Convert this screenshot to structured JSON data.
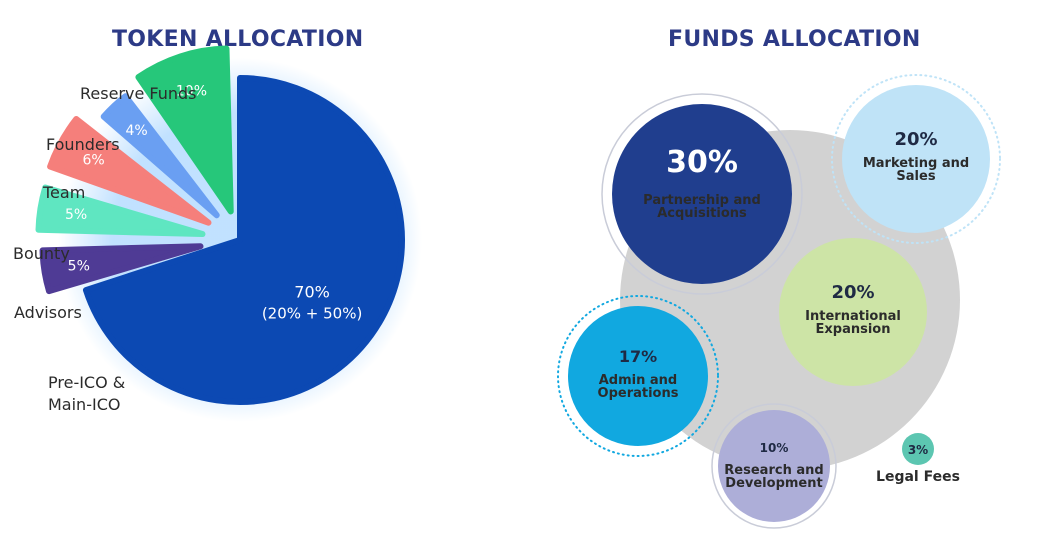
{
  "titles": {
    "token": "TOKEN ALLOCATION",
    "funds": "FUNDS ALLOCATION"
  },
  "chart_data": [
    {
      "type": "pie",
      "title": "TOKEN ALLOCATION",
      "slices": [
        {
          "label": "Pre-ICO & Main-ICO",
          "value": 70,
          "display": "70%",
          "sub": "(20% + 50%)",
          "color": "#0c49b3"
        },
        {
          "label": "Advisors",
          "value": 5,
          "display": "5%",
          "color": "#4f3b95"
        },
        {
          "label": "Bounty",
          "value": 5,
          "display": "5%",
          "color": "#5fe6c1"
        },
        {
          "label": "Team",
          "value": 6,
          "display": "6%",
          "color": "#f57f7b"
        },
        {
          "label": "Founders",
          "value": 4,
          "display": "4%",
          "color": "#6a9ff2"
        },
        {
          "label": "Reserve Funds",
          "value": 10,
          "display": "10%",
          "color": "#26c77a"
        }
      ]
    },
    {
      "type": "bubble",
      "title": "FUNDS ALLOCATION",
      "items": [
        {
          "label": "Partnership and Acquisitions",
          "value": 30,
          "display": "30%",
          "color": "#203e8e",
          "text_color": "#ffffff"
        },
        {
          "label": "Marketing and Sales",
          "value": 20,
          "display": "20%",
          "color": "#bfe3f7",
          "text_color": "#1f2a44"
        },
        {
          "label": "International Expansion",
          "value": 20,
          "display": "20%",
          "color": "#cde4a6",
          "text_color": "#1f2a44"
        },
        {
          "label": "Admin and Operations",
          "value": 17,
          "display": "17%",
          "color": "#11a8e0",
          "text_color": "#1f2a44"
        },
        {
          "label": "Research and Development",
          "value": 10,
          "display": "10%",
          "color": "#adaed8",
          "text_color": "#1f2a44"
        },
        {
          "label": "Legal Fees",
          "value": 3,
          "display": "3%",
          "color": "#5cc6b1",
          "text_color": "#1f2a44"
        }
      ]
    }
  ]
}
